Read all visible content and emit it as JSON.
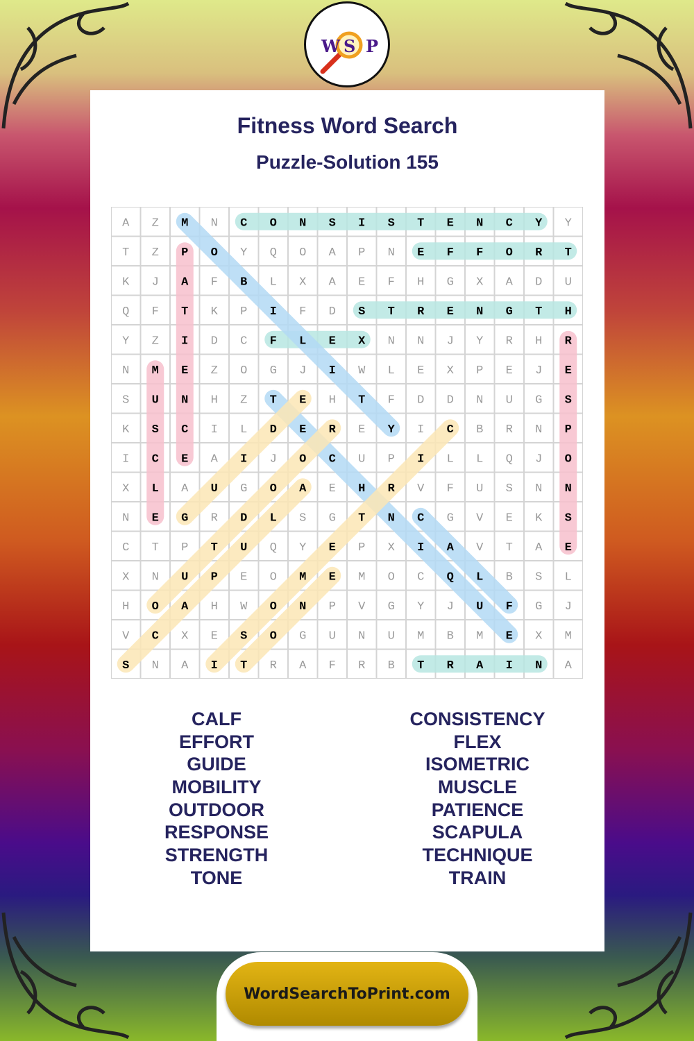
{
  "logo": {
    "letters": [
      "W",
      "S",
      "P"
    ]
  },
  "title": "Fitness Word Search",
  "subtitle": "Puzzle-Solution 155",
  "grid": [
    "AZMNCONSISTENCYY",
    "TZPOYQOAPNEFFORT",
    "KJAFBLXAEFHGXADU",
    "QFTKPIFDSTRENGTH",
    "YZIDCFLEXNNJYRHR",
    "NMEZOGJIWLEXPEJE",
    "SUNHZTEHTFDDNUGS",
    "KSCILDEREYICBRNP",
    "ICEAIJOCUPILLQJO",
    "XLAUGOAEHRVFUSNN",
    "NEGRDLSGTNCGVEKS",
    "CTPTUQYEPXIAVTAE",
    "XNUPEOMEMOCQLBSL",
    "HOAHWONPVGYJUFGJ",
    "VCXESOGUNUMBMEXM",
    "SNAITRAFRBTRAINA"
  ],
  "solutions": [
    {
      "word": "CONSISTENCY",
      "row": 0,
      "col": 4,
      "dir": "E",
      "color": "#b7e6e2"
    },
    {
      "word": "EFFORT",
      "row": 1,
      "col": 10,
      "dir": "E",
      "color": "#b7e6e2"
    },
    {
      "word": "STRENGTH",
      "row": 3,
      "col": 8,
      "dir": "E",
      "color": "#b7e6e2"
    },
    {
      "word": "FLEX",
      "row": 4,
      "col": 5,
      "dir": "E",
      "color": "#b7e6e2"
    },
    {
      "word": "TRAIN",
      "row": 15,
      "col": 10,
      "dir": "E",
      "color": "#b7e6e2"
    },
    {
      "word": "PATIENCE",
      "row": 1,
      "col": 2,
      "dir": "S",
      "color": "#f7bfcd"
    },
    {
      "word": "MUSCLE",
      "row": 5,
      "col": 1,
      "dir": "S",
      "color": "#f7bfcd"
    },
    {
      "word": "RESPONSE",
      "row": 4,
      "col": 15,
      "dir": "S",
      "color": "#f7bfcd"
    },
    {
      "word": "MOBILITY",
      "row": 0,
      "col": 2,
      "dir": "SE",
      "color": "#b3d9f5"
    },
    {
      "word": "TECHNIQUE",
      "row": 6,
      "col": 5,
      "dir": "SE",
      "color": "#b3d9f5"
    },
    {
      "word": "CALF",
      "row": 10,
      "col": 10,
      "dir": "SE",
      "color": "#b3d9f5"
    },
    {
      "word": "GUIDE",
      "row": 10,
      "col": 2,
      "dir": "NE",
      "color": "#fbe6b5"
    },
    {
      "word": "OUTDOOR",
      "row": 13,
      "col": 1,
      "dir": "NE",
      "color": "#fbe6b5"
    },
    {
      "word": "SCAPULA",
      "row": 15,
      "col": 0,
      "dir": "NE",
      "color": "#fbe6b5"
    },
    {
      "word": "ISOMETRIC",
      "row": 15,
      "col": 3,
      "dir": "NE",
      "color": "#fbe6b5"
    },
    {
      "word": "TONE",
      "row": 15,
      "col": 4,
      "dir": "NE",
      "color": "#fbe6b5"
    }
  ],
  "word_list": {
    "left": [
      "CALF",
      "EFFORT",
      "GUIDE",
      "MOBILITY",
      "OUTDOOR",
      "RESPONSE",
      "STRENGTH",
      "TONE"
    ],
    "right": [
      "CONSISTENCY",
      "FLEX",
      "ISOMETRIC",
      "MUSCLE",
      "PATIENCE",
      "SCAPULA",
      "TECHNIQUE",
      "TRAIN"
    ]
  },
  "footer": "WordSearchToPrint.com",
  "colors": {
    "title": "#25235e",
    "footer": "#d4a50a"
  }
}
